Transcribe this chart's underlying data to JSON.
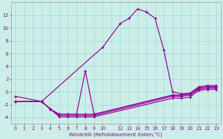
{
  "xlabel": "Windchill (Refroidissement éolien,°C)",
  "background_color": "#cceee8",
  "grid_color": "#aadddd",
  "line_color": "#990099",
  "xlim": [
    -0.5,
    23.5
  ],
  "ylim": [
    -5,
    14
  ],
  "ytick_values": [
    -4,
    -2,
    0,
    2,
    4,
    6,
    8,
    10,
    12
  ],
  "xtick_positions": [
    0,
    1,
    2,
    3,
    4,
    5,
    6,
    7,
    8,
    9,
    10,
    12,
    13,
    14,
    15,
    16,
    17,
    18,
    19,
    20,
    21,
    22,
    23
  ],
  "xtick_labels": [
    "0",
    "1",
    "2",
    "3",
    "4",
    "5",
    "6",
    "7",
    "8",
    "9",
    "10",
    "12",
    "13",
    "14",
    "15",
    "16",
    "17",
    "18",
    "19",
    "20",
    "21",
    "22",
    "23"
  ],
  "curves": [
    {
      "x": [
        0,
        3,
        10,
        12,
        13,
        14,
        15,
        16,
        17,
        18,
        19,
        20,
        21,
        22,
        23
      ],
      "y": [
        -0.7,
        -1.5,
        7.0,
        10.7,
        11.5,
        13.0,
        12.5,
        11.5,
        6.5,
        0.0,
        -0.3,
        -0.2,
        0.8,
        1.0,
        1.0
      ]
    },
    {
      "x": [
        0,
        3,
        4,
        5,
        6,
        7,
        8,
        9,
        18,
        19,
        20,
        21,
        22,
        23
      ],
      "y": [
        -1.5,
        -1.5,
        -2.7,
        -3.5,
        -3.5,
        -3.5,
        3.3,
        -3.5,
        -0.5,
        -0.5,
        -0.3,
        0.6,
        0.8,
        0.8
      ]
    },
    {
      "x": [
        0,
        3,
        4,
        5,
        6,
        7,
        8,
        9,
        18,
        19,
        20,
        21,
        22,
        23
      ],
      "y": [
        -1.5,
        -1.5,
        -2.7,
        -3.5,
        -3.5,
        -3.5,
        -3.5,
        -3.5,
        -0.5,
        -0.5,
        -0.3,
        0.6,
        0.8,
        0.8
      ]
    },
    {
      "x": [
        0,
        3,
        4,
        5,
        6,
        7,
        8,
        9,
        18,
        19,
        20,
        21,
        22,
        23
      ],
      "y": [
        -1.5,
        -1.5,
        -2.7,
        -3.7,
        -3.7,
        -3.7,
        -3.7,
        -3.7,
        -0.7,
        -0.7,
        -0.5,
        0.4,
        0.6,
        0.6
      ]
    },
    {
      "x": [
        0,
        3,
        4,
        5,
        6,
        7,
        8,
        9,
        18,
        19,
        20,
        21,
        22,
        23
      ],
      "y": [
        -1.5,
        -1.5,
        -2.7,
        -3.9,
        -3.9,
        -3.9,
        -3.9,
        -3.9,
        -1.0,
        -1.0,
        -0.8,
        0.2,
        0.4,
        0.4
      ]
    }
  ]
}
